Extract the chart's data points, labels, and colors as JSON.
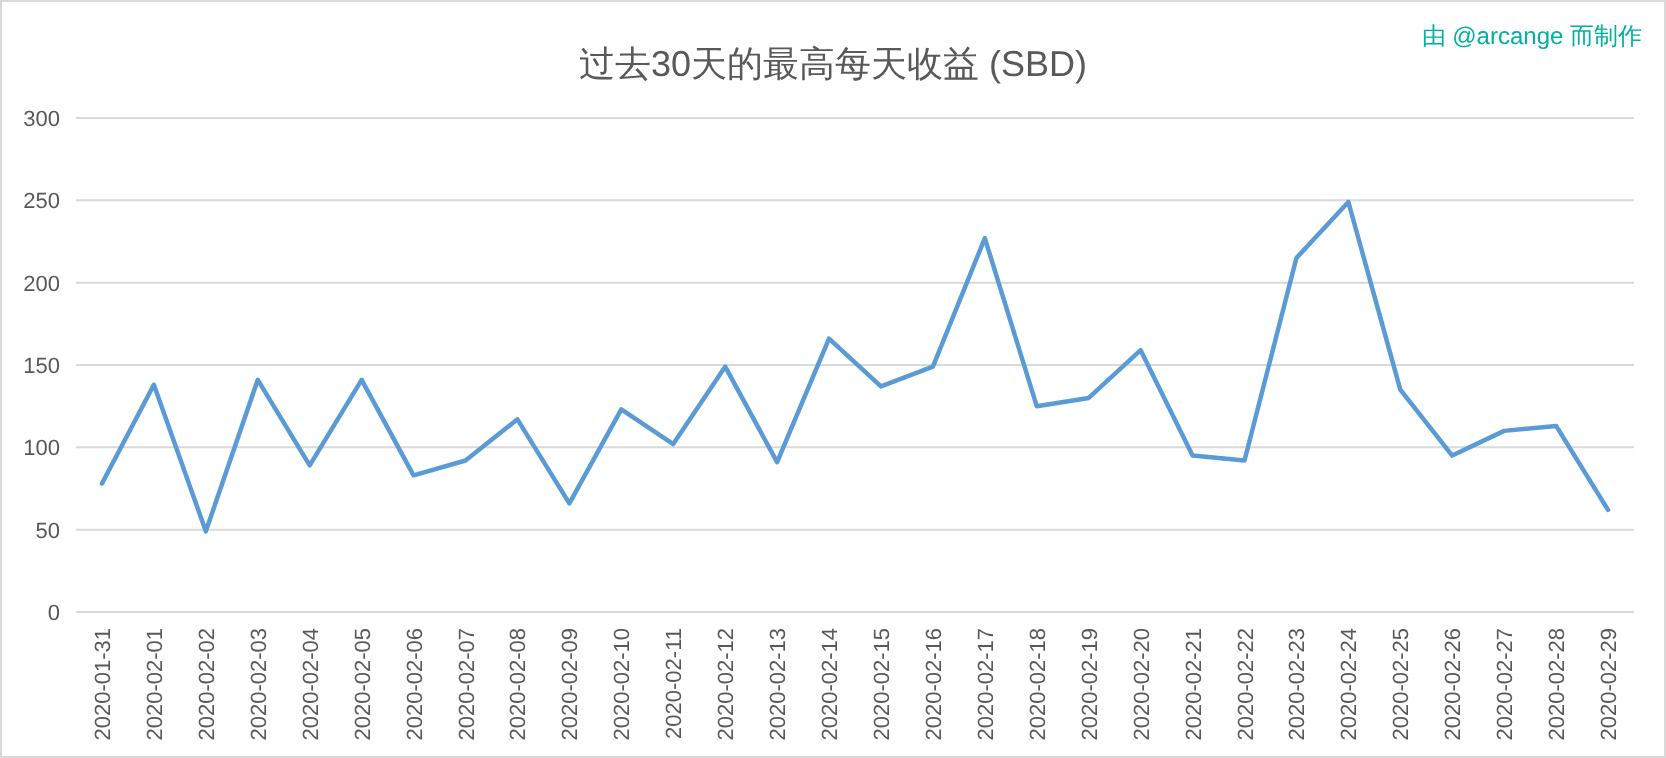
{
  "chart_data": {
    "type": "line",
    "title": "过去30天的最高每天收益 (SBD)",
    "annotations": [
      "由 @arcange 而制作"
    ],
    "categories": [
      "2020-01-31",
      "2020-02-01",
      "2020-02-02",
      "2020-02-03",
      "2020-02-04",
      "2020-02-05",
      "2020-02-06",
      "2020-02-07",
      "2020-02-08",
      "2020-02-09",
      "2020-02-10",
      "2020-02-11",
      "2020-02-12",
      "2020-02-13",
      "2020-02-14",
      "2020-02-15",
      "2020-02-16",
      "2020-02-17",
      "2020-02-18",
      "2020-02-19",
      "2020-02-20",
      "2020-02-21",
      "2020-02-22",
      "2020-02-23",
      "2020-02-24",
      "2020-02-25",
      "2020-02-26",
      "2020-02-27",
      "2020-02-28",
      "2020-02-29"
    ],
    "series": [
      {
        "color": "#5b9bd5",
        "values": [
          78,
          138,
          49,
          141,
          89,
          141,
          83,
          92,
          117,
          66,
          123,
          102,
          149,
          91,
          166,
          137,
          149,
          227,
          125,
          130,
          159,
          95,
          92,
          215,
          249,
          135,
          95,
          110,
          113,
          62
        ]
      }
    ],
    "ylim": [
      0,
      300
    ],
    "yticks": [
      0,
      50,
      100,
      150,
      200,
      250,
      300
    ],
    "grid": "y",
    "marker": "none",
    "line_style": "solid"
  }
}
